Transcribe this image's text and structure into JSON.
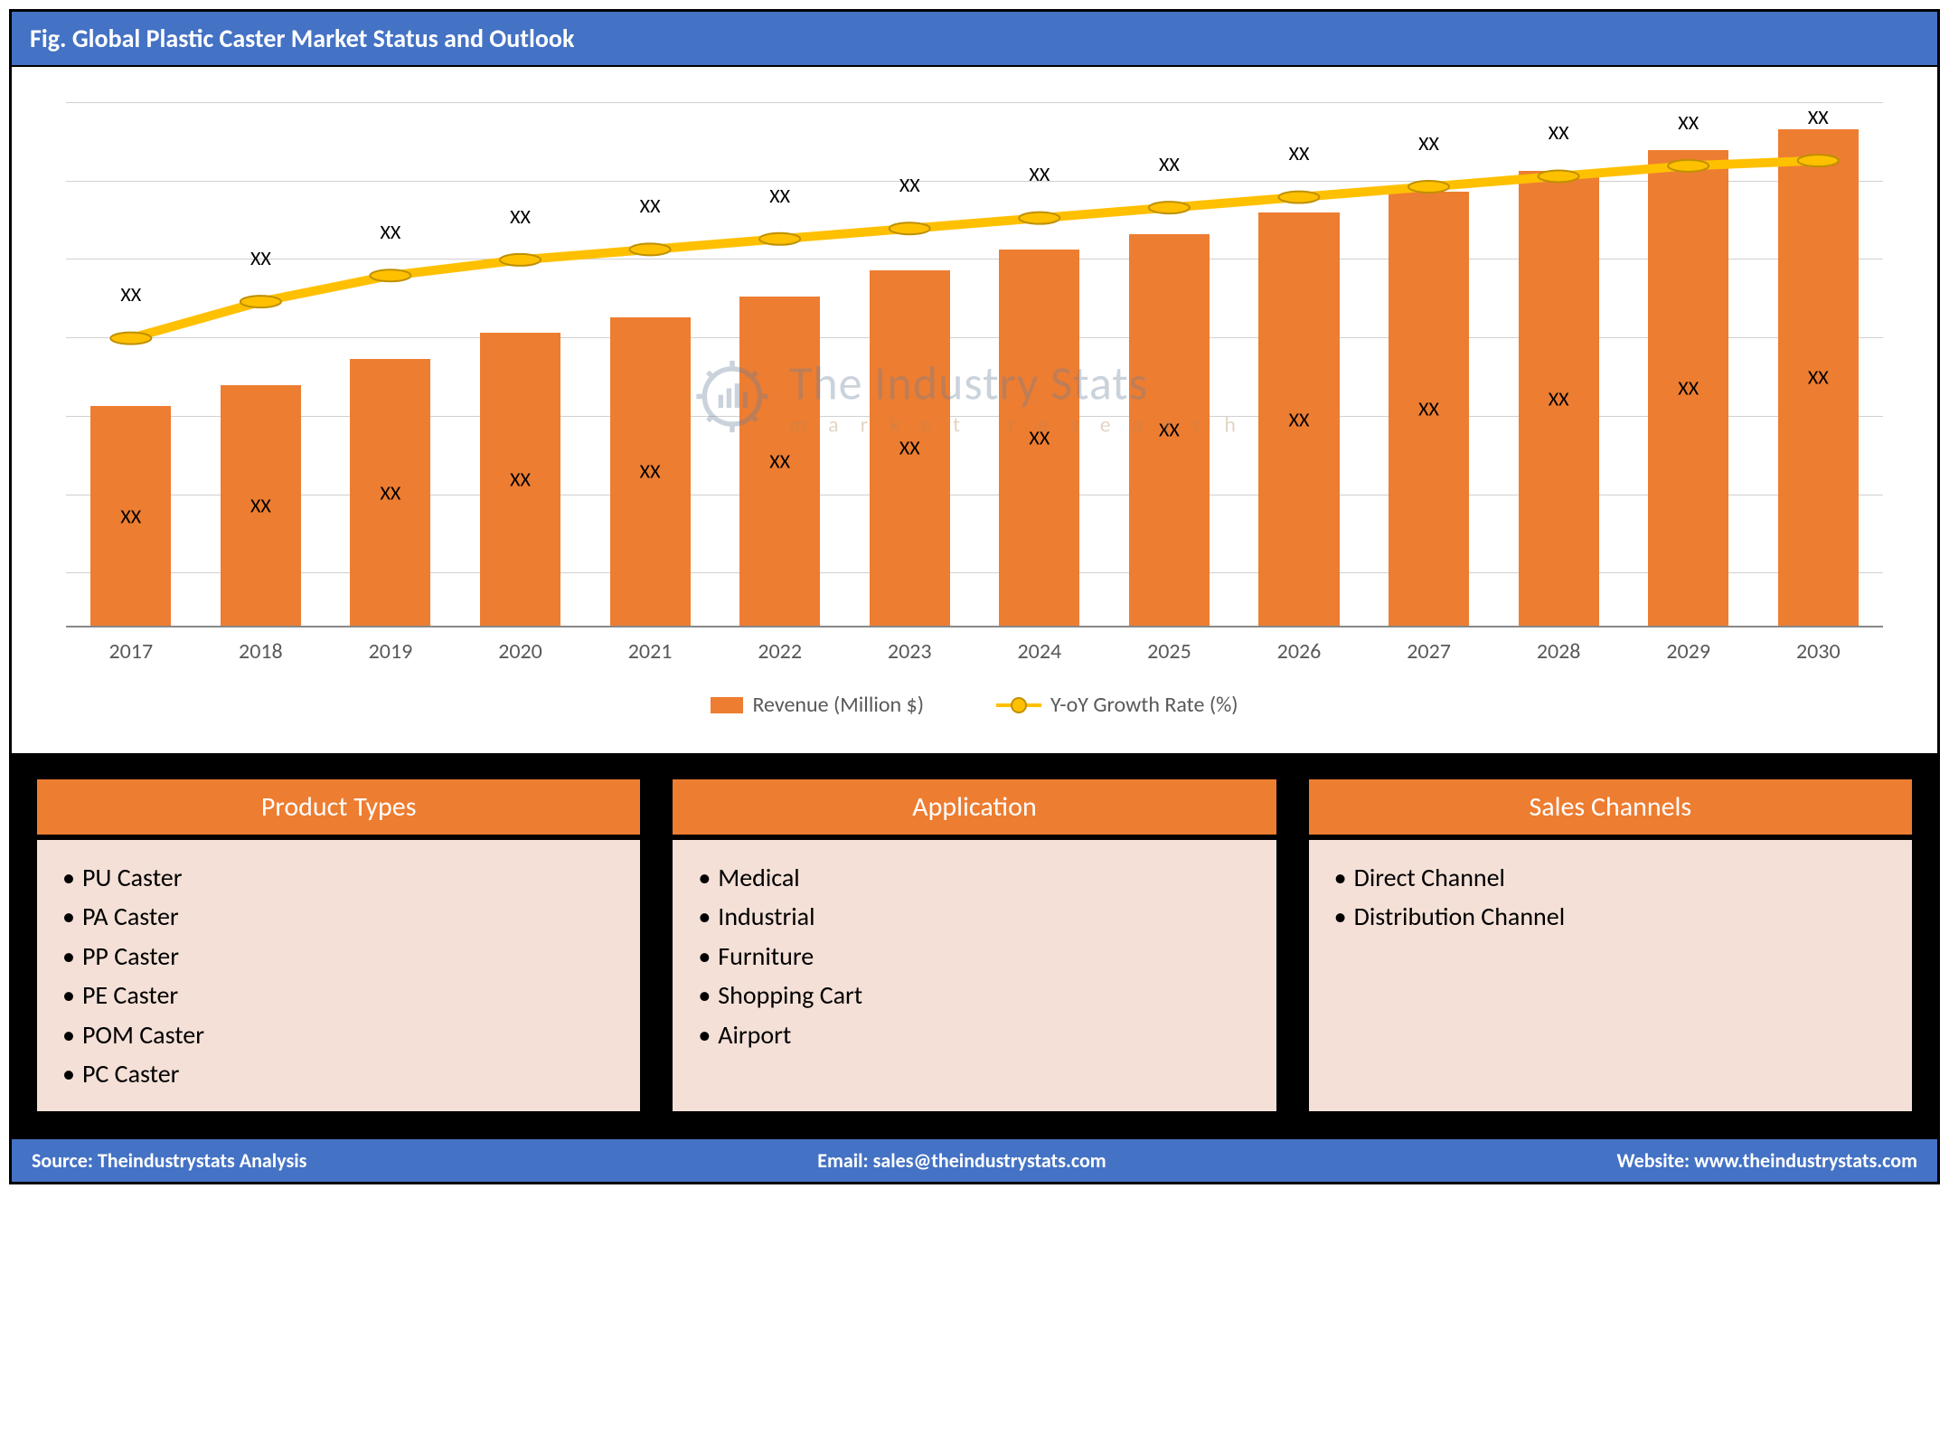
{
  "title": "Fig. Global Plastic Caster Market Status and Outlook",
  "chart": {
    "type": "bar+line",
    "categories": [
      "2017",
      "2018",
      "2019",
      "2020",
      "2021",
      "2022",
      "2023",
      "2024",
      "2025",
      "2026",
      "2027",
      "2028",
      "2029",
      "2030"
    ],
    "bar_values_pct": [
      42,
      46,
      51,
      56,
      59,
      63,
      68,
      72,
      75,
      79,
      83,
      87,
      91,
      95
    ],
    "bar_inner_labels": [
      "XX",
      "XX",
      "XX",
      "XX",
      "XX",
      "XX",
      "XX",
      "XX",
      "XX",
      "XX",
      "XX",
      "XX",
      "XX",
      "XX"
    ],
    "line_values_pct": [
      55,
      62,
      67,
      70,
      72,
      74,
      76,
      78,
      80,
      82,
      84,
      86,
      88,
      89
    ],
    "line_top_labels": [
      "XX",
      "XX",
      "XX",
      "XX",
      "XX",
      "XX",
      "XX",
      "XX",
      "XX",
      "XX",
      "XX",
      "XX",
      "XX",
      "XX"
    ],
    "bar_color": "#ed7d31",
    "line_color": "#ffc000",
    "marker_color": "#ffc000",
    "marker_border": "#bf9000",
    "grid_color": "#d0d0d0",
    "gridline_positions_pct": [
      10,
      25,
      40,
      55,
      70,
      85,
      100
    ],
    "legend": {
      "bar_label": "Revenue (Million $)",
      "line_label": "Y-oY Growth Rate (%)"
    },
    "xaxis_color": "#595959",
    "xaxis_fontsize": 24,
    "legend_fontsize": 24,
    "bar_width_pct": 62,
    "line_width": 5,
    "marker_radius": 8
  },
  "watermark": {
    "main": "The Industry Stats",
    "sub": "market research",
    "main_color": "#6b7f99",
    "sub_color": "#b08a5a"
  },
  "panels": [
    {
      "title": "Product Types",
      "items": [
        "PU Caster",
        "PA Caster",
        "PP Caster",
        "PE Caster",
        "POM Caster",
        "PC Caster"
      ]
    },
    {
      "title": "Application",
      "items": [
        "Medical",
        "Industrial",
        "Furniture",
        "Shopping Cart",
        "Airport"
      ]
    },
    {
      "title": "Sales Channels",
      "items": [
        "Direct Channel",
        "Distribution Channel"
      ]
    }
  ],
  "panel_header_bg": "#ed7d31",
  "panel_body_bg": "#f4e0d7",
  "footer": {
    "source_label": "Source:",
    "source_value": "Theindustrystats Analysis",
    "email_label": "Email:",
    "email_value": "sales@theindustrystats.com",
    "website_label": "Website:",
    "website_value": "www.theindustrystats.com",
    "bg": "#4472c4"
  }
}
